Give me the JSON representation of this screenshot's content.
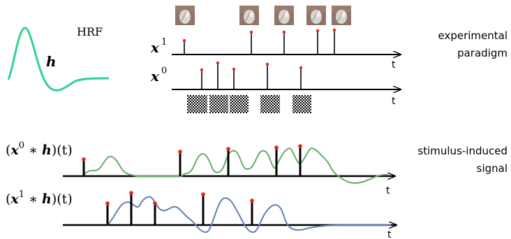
{
  "colors": {
    "hrf": "#2ed48f",
    "green_signal": "#6aaa6a",
    "blue_signal": "#5f7fb5",
    "stem": "#000000",
    "marker": "#e8221b"
  },
  "hrf": {
    "label": "HRF",
    "symbol": "h"
  },
  "paradigm": {
    "label_line1": "experimental",
    "label_line2": "paradigm",
    "x1": {
      "name": "x",
      "sup": "1",
      "axis_label": "t",
      "icon": "hand-photo-icon"
    },
    "x0": {
      "name": "x",
      "sup": "0",
      "axis_label": "t",
      "icon": "checkerboard-icon"
    }
  },
  "signal": {
    "label_line1": "stimulus-induced",
    "label_line2": "signal",
    "conv0": {
      "open": "(",
      "x": "x",
      "sup": "0",
      "op": " ∗ ",
      "h": "h",
      "close": ")(t)",
      "axis_label": "t"
    },
    "conv1": {
      "open": "(",
      "x": "x",
      "sup": "1",
      "op": " ∗ ",
      "h": "h",
      "close": ")(t)",
      "axis_label": "t"
    }
  }
}
